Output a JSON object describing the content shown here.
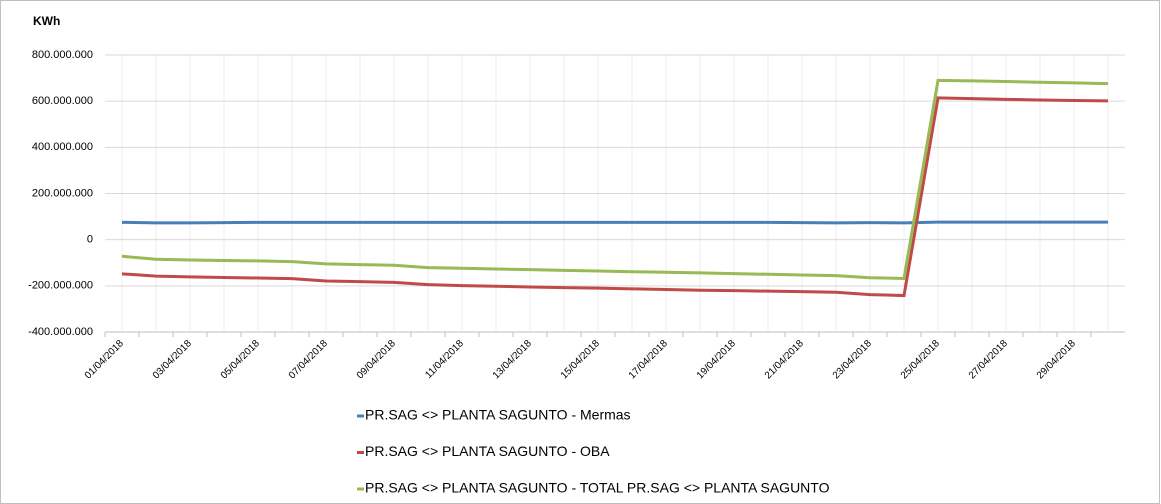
{
  "chart_data": {
    "type": "line",
    "y_label": "KWh",
    "categories": [
      "01/04/2018",
      null,
      "03/04/2018",
      null,
      "05/04/2018",
      null,
      "07/04/2018",
      null,
      "09/04/2018",
      null,
      "11/04/2018",
      null,
      "13/04/2018",
      null,
      "15/04/2018",
      null,
      "17/04/2018",
      null,
      "19/04/2018",
      null,
      "21/04/2018",
      null,
      "23/04/2018",
      null,
      "25/04/2018",
      null,
      "27/04/2018",
      null,
      "29/04/2018",
      null
    ],
    "series": [
      {
        "name": "PR.SAG <> PLANTA SAGUNTO - Mermas",
        "color": "#4a7ebb",
        "values": [
          75000000,
          73000000,
          73000000,
          74000000,
          75000000,
          75000000,
          75000000,
          75000000,
          75000000,
          75000000,
          75000000,
          75000000,
          75000000,
          75000000,
          75000000,
          75000000,
          75000000,
          75000000,
          75000000,
          75000000,
          74000000,
          73000000,
          74000000,
          73000000,
          76000000,
          76000000,
          76000000,
          76000000,
          76000000,
          76000000
        ]
      },
      {
        "name": "PR.SAG <> PLANTA SAGUNTO - OBA",
        "color": "#be4b48",
        "values": [
          -148000000,
          -158000000,
          -161000000,
          -164000000,
          -166000000,
          -169000000,
          -179000000,
          -182000000,
          -185000000,
          -195000000,
          -199000000,
          -202000000,
          -205000000,
          -208000000,
          -210000000,
          -213000000,
          -216000000,
          -219000000,
          -221000000,
          -223000000,
          -225000000,
          -228000000,
          -238000000,
          -242000000,
          614000000,
          611000000,
          608000000,
          605000000,
          603000000,
          601000000
        ]
      },
      {
        "name": "PR.SAG <> PLANTA SAGUNTO - TOTAL PR.SAG <> PLANTA SAGUNTO",
        "color": "#98b954",
        "values": [
          -72000000,
          -85000000,
          -88000000,
          -90000000,
          -92000000,
          -95000000,
          -105000000,
          -108000000,
          -111000000,
          -121000000,
          -124000000,
          -127000000,
          -130000000,
          -133000000,
          -136000000,
          -139000000,
          -141000000,
          -144000000,
          -147000000,
          -150000000,
          -153000000,
          -156000000,
          -165000000,
          -168000000,
          690000000,
          688000000,
          685000000,
          682000000,
          679000000,
          676000000
        ]
      }
    ],
    "ylim": [
      -400000000,
      800000000
    ],
    "yticks": [
      {
        "value": -400000000,
        "label": "-400.000.000"
      },
      {
        "value": -200000000,
        "label": "-200.000.000"
      },
      0,
      {
        "value": 200000000,
        "label": "200.000.000"
      },
      {
        "value": 400000000,
        "label": "400.000.000"
      },
      {
        "value": 600000000,
        "label": "600.000.000"
      },
      {
        "value": 800000000,
        "label": "800.000.000"
      }
    ],
    "grid": true
  }
}
